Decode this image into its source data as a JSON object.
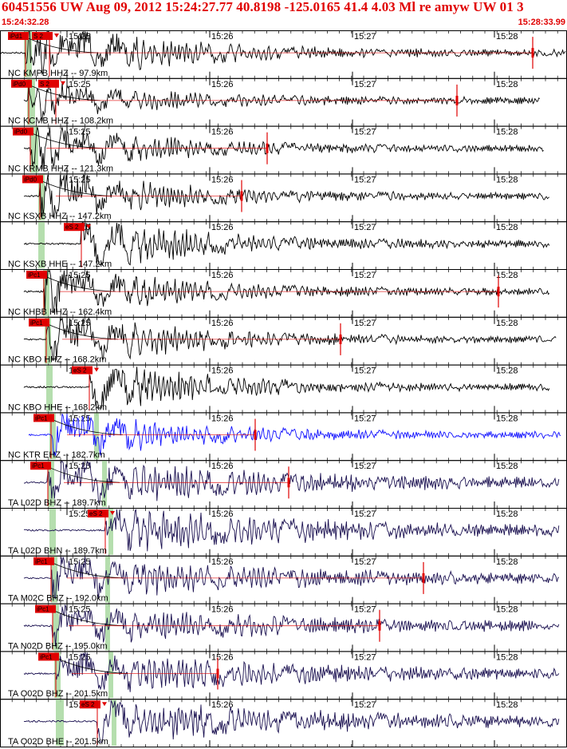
{
  "header": {
    "title": "60451556 UW Aug 09, 2012 15:24:27.77    40.8198 -125.0165 41.4 4.03 Ml re amyw UW 01   3",
    "start_time": "15:24:32.28",
    "end_time": "15:28:33.99"
  },
  "colors": {
    "title": "#e00000",
    "pick": "#e00000",
    "trace_black": "#000000",
    "trace_blue": "#1010ff",
    "trace_navy": "#1a1050",
    "phase_band": "#a8d8a0"
  },
  "chart_data": {
    "type": "line",
    "x_axis": {
      "start": "15:24:32.28",
      "end": "15:28:33.99",
      "tick_labels": [
        "15:25",
        "15:26",
        "15:27",
        "15:28"
      ]
    },
    "traces": [
      {
        "label": "NC KMPB HHZ -- 97.9km",
        "picks": [
          "iPd1",
          "S 2"
        ],
        "color": "black"
      },
      {
        "label": "NC KCMB HHZ -- 108.2km",
        "picks": [
          "iPd0",
          "S 2"
        ],
        "color": "black"
      },
      {
        "label": "NC KRMB HHZ -- 121.3km",
        "picks": [
          "iPd0"
        ],
        "color": "black"
      },
      {
        "label": "NC KSXB HHZ -- 147.2km",
        "picks": [
          "iPd0"
        ],
        "color": "black"
      },
      {
        "label": "NC KSXB HHE -- 147.2km",
        "picks": [
          "eS 2"
        ],
        "color": "black"
      },
      {
        "label": "NC KHBB HHZ -- 162.4km",
        "picks": [
          "iPc1"
        ],
        "color": "black"
      },
      {
        "label": "NC KBO HHZ -- 168.2km",
        "picks": [
          "iPc1"
        ],
        "color": "black"
      },
      {
        "label": "NC KBO HHE -- 168.2km",
        "picks": [
          "eS 2"
        ],
        "color": "black"
      },
      {
        "label": "NC KTR EHZ -- 182.7km",
        "picks": [
          "iPc1"
        ],
        "color": "blue"
      },
      {
        "label": "TA L02D BHZ -- 189.7km",
        "picks": [
          "iPc1"
        ],
        "color": "navy"
      },
      {
        "label": "TA L02D BHN -- 189.7km",
        "picks": [
          "eS 2"
        ],
        "color": "navy"
      },
      {
        "label": "TA M02C BHZ -- 192.0km",
        "picks": [
          "iPc1"
        ],
        "color": "navy"
      },
      {
        "label": "TA N02D BHZ -- 195.0km",
        "picks": [
          "iPc1"
        ],
        "color": "navy"
      },
      {
        "label": "TA O02D BHZ -- 201.5km",
        "picks": [
          "iPc1"
        ],
        "color": "navy"
      },
      {
        "label": "TA O02D BHE -- 201.5km",
        "picks": [
          "eS 2"
        ],
        "color": "navy"
      }
    ]
  }
}
